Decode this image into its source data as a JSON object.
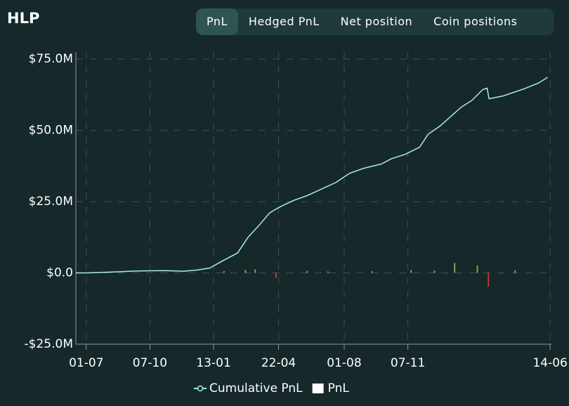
{
  "tabs": {
    "items": [
      "PnL",
      "Hedged PnL",
      "Net position",
      "Coin positions"
    ],
    "active": 0
  },
  "chart_data": {
    "type": "line",
    "title": "HLP",
    "xlim": [
      -16,
      716
    ],
    "xticks": [
      {
        "value": 0,
        "label": "01-07"
      },
      {
        "value": 98,
        "label": "07-10"
      },
      {
        "value": 196,
        "label": "13-01"
      },
      {
        "value": 296,
        "label": "22-04"
      },
      {
        "value": 397,
        "label": "01-08"
      },
      {
        "value": 495,
        "label": "07-11"
      },
      {
        "value": 714,
        "label": "14-06"
      }
    ],
    "ylim": [
      -25,
      77.5
    ],
    "yticks": [
      {
        "value": -25,
        "label": "-$25.0M"
      },
      {
        "value": 0,
        "label": "$0.0"
      },
      {
        "value": 25,
        "label": "$25.0M"
      },
      {
        "value": 50,
        "label": "$50.0M"
      },
      {
        "value": 75,
        "label": "$75.0M"
      }
    ],
    "grid": true,
    "series": [
      {
        "name": "Cumulative PnL",
        "type": "line",
        "color": "#a5f0dd",
        "x": [
          -16,
          0,
          40,
          80,
          120,
          150,
          170,
          190,
          212,
          233,
          249,
          266,
          282,
          292,
          303,
          319,
          341,
          362,
          384,
          405,
          427,
          454,
          470,
          491,
          513,
          526,
          545,
          567,
          577,
          594,
          610,
          617,
          620,
          642,
          674,
          696,
          710
        ],
        "values": [
          0,
          0,
          0.3,
          0.7,
          0.8,
          0.6,
          1.0,
          1.7,
          4.5,
          7,
          12.5,
          16.7,
          21,
          22.4,
          23.7,
          25.4,
          27.2,
          29.4,
          31.7,
          34.9,
          36.7,
          38.2,
          40.1,
          41.6,
          44.1,
          48.6,
          51.6,
          56.1,
          58.1,
          60.6,
          64.3,
          64.8,
          61.1,
          62.1,
          64.6,
          66.6,
          68.6
        ]
      },
      {
        "name": "PnL",
        "type": "bar",
        "color": "#ffffff",
        "positive_color": "#6fae4a",
        "negative_color": "#c23a2e",
        "x": [
          212,
          245,
          260,
          292,
          340,
          372,
          440,
          500,
          536,
          567,
          602,
          619,
          660
        ],
        "values": [
          0.6,
          1.0,
          1.2,
          -1.8,
          0.7,
          0.5,
          0.6,
          1.0,
          0.8,
          3.5,
          2.6,
          -4.8,
          0.9
        ]
      }
    ]
  }
}
